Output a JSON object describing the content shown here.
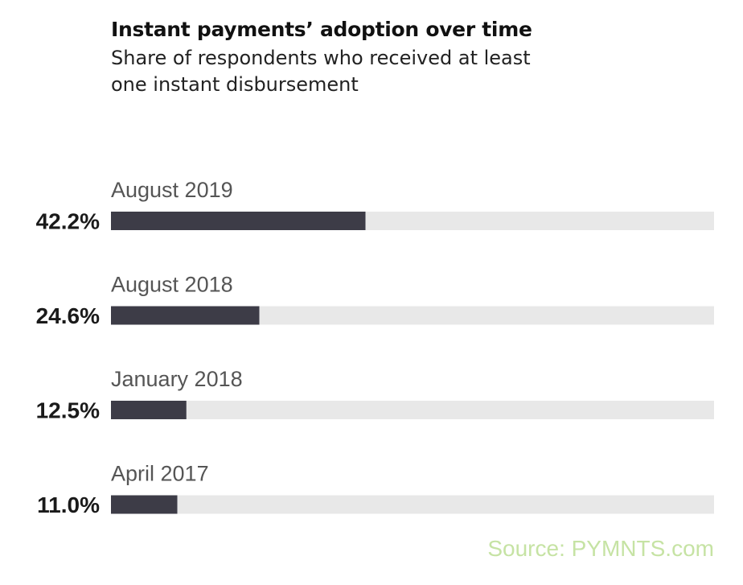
{
  "header": {
    "title": "Instant payments’ adoption over time",
    "subtitle": "Share of respondents who received at least one instant disbursement"
  },
  "source": "Source: PYMNTS.com",
  "colors": {
    "bar": "#3d3c47",
    "track": "#e8e8e8",
    "source_text": "#c6e3a4"
  },
  "chart_data": {
    "type": "bar",
    "orientation": "horizontal",
    "categories": [
      "August 2019",
      "August 2018",
      "January 2018",
      "April 2017"
    ],
    "values": [
      42.2,
      24.6,
      12.5,
      11.0
    ],
    "value_labels": [
      "42.2%",
      "24.6%",
      "12.5%",
      "11.0%"
    ],
    "unit": "%",
    "xlim": [
      0,
      100
    ],
    "grid": false
  }
}
